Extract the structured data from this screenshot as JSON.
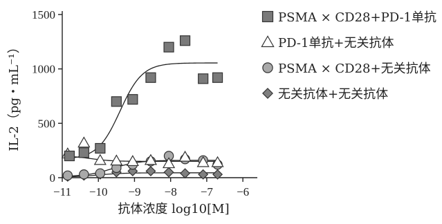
{
  "chart_data": {
    "type": "scatter",
    "xlabel": "抗体浓度  log10[M]",
    "ylabel": "IL-2（pg・mL⁻¹）",
    "xlim": [
      -11,
      -5.6
    ],
    "ylim": [
      0,
      1500
    ],
    "xticks": [
      -11,
      -10,
      -9,
      -8,
      -7,
      -6
    ],
    "xtick_labels": [
      "−11",
      "−10",
      "−9",
      "−8",
      "−7",
      "−6"
    ],
    "yticks": [
      0,
      500,
      1000,
      1500
    ],
    "ytick_labels": [
      "0",
      "500",
      "1000",
      "1500"
    ],
    "grid": false,
    "legend_position": "right",
    "series": [
      {
        "name": "PSMA × CD28+PD-1单抗",
        "marker": "square",
        "color": "#7a7a7a",
        "x": [
          -10.8,
          -10.4,
          -9.95,
          -9.5,
          -9.05,
          -8.55,
          -8.05,
          -7.6,
          -7.1,
          -6.7
        ],
        "y": [
          200,
          230,
          270,
          700,
          720,
          920,
          1200,
          1260,
          910,
          920
        ],
        "fit": {
          "bottom": 170,
          "top": 1055,
          "ec50": -9.4,
          "hill": 1.4
        }
      },
      {
        "name": "PD-1单抗+无关抗体",
        "marker": "triangle",
        "color": "#ffffff",
        "x": [
          -10.85,
          -10.4,
          -9.95,
          -9.5,
          -9.05,
          -8.55,
          -8.05,
          -7.6,
          -7.1,
          -6.7
        ],
        "y": [
          220,
          320,
          160,
          155,
          150,
          160,
          130,
          190,
          140,
          140
        ],
        "fit": {
          "bottom": 200,
          "top": 150,
          "ec50": -10.2,
          "hill": 1.5
        }
      },
      {
        "name": "PSMA × CD28+无关抗体",
        "marker": "circle",
        "color": "#a9a9a9",
        "x": [
          -10.85,
          -10.4,
          -9.95,
          -9.5,
          -9.05,
          -8.55,
          -8.05,
          -7.6,
          -7.1,
          -6.7
        ],
        "y": [
          20,
          30,
          40,
          90,
          120,
          150,
          200,
          170,
          160,
          120
        ],
        "fit": {
          "bottom": 10,
          "top": 160,
          "ec50": -9.6,
          "hill": 1.2
        }
      },
      {
        "name": "无关抗体+无关抗体",
        "marker": "diamond",
        "color": "#7f7f7f",
        "x": [
          -10.85,
          -10.4,
          -9.95,
          -9.5,
          -9.05,
          -8.55,
          -8.05,
          -7.6,
          -7.1,
          -6.7
        ],
        "y": [
          10,
          20,
          30,
          50,
          60,
          60,
          50,
          40,
          30,
          30
        ],
        "fit": {
          "bottom": 5,
          "top": 45,
          "ec50": -10.0,
          "hill": 1.2
        }
      }
    ]
  }
}
